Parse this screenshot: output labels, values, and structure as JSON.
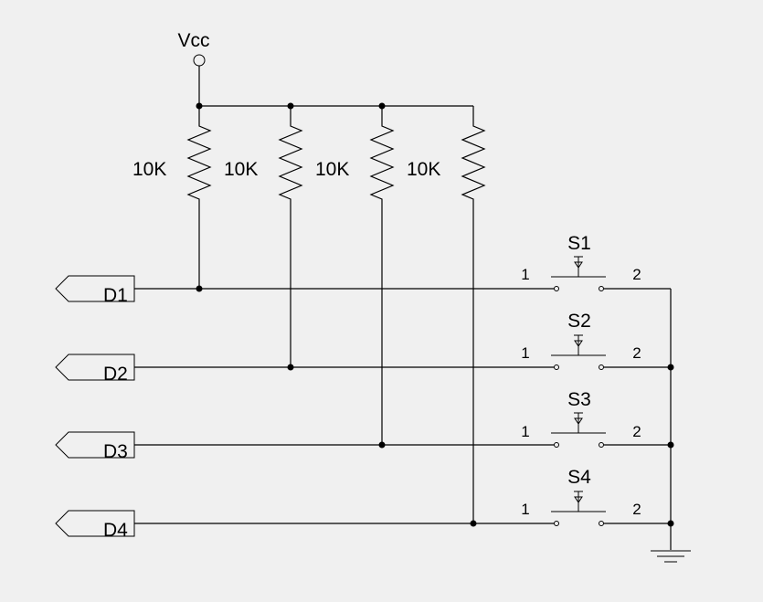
{
  "power": {
    "label": "Vcc"
  },
  "resistors": [
    {
      "value": "10K"
    },
    {
      "value": "10K"
    },
    {
      "value": "10K"
    },
    {
      "value": "10K"
    }
  ],
  "ports": [
    {
      "label": "D1"
    },
    {
      "label": "D2"
    },
    {
      "label": "D3"
    },
    {
      "label": "D4"
    }
  ],
  "switches": [
    {
      "name": "S1",
      "pin1": "1",
      "pin2": "2"
    },
    {
      "name": "S2",
      "pin1": "1",
      "pin2": "2"
    },
    {
      "name": "S3",
      "pin1": "1",
      "pin2": "2"
    },
    {
      "name": "S4",
      "pin1": "1",
      "pin2": "2"
    }
  ],
  "colors": {
    "background": "#f0f0f0",
    "ink": "#000000"
  }
}
